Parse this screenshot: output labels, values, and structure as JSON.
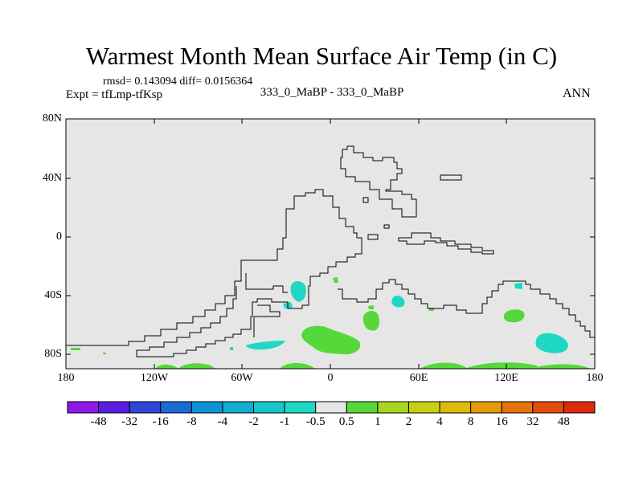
{
  "title": "Warmest Month Mean Surface Air Temp (in C)",
  "stats": "rmsd= 0.143094  diff= 0.0156364",
  "expt": "Expt = tfLmp-tfKsp",
  "center_label": "333_0_MaBP - 333_0_MaBP",
  "season": "ANN",
  "lat_ticks": [
    "80N",
    "40N",
    "0",
    "40S",
    "80S"
  ],
  "lon_ticks": [
    "180",
    "120W",
    "60W",
    "0",
    "60E",
    "120E",
    "180"
  ],
  "colors": {
    "background": "#e6e6e6",
    "positive_anomaly": "#55d839",
    "negative_anomaly": "#1ed8c3",
    "coastline": "#000000"
  },
  "colorbar": {
    "colors": [
      "#8f18e8",
      "#5a1ee0",
      "#3046d8",
      "#1a6ad8",
      "#0c94d8",
      "#11aed0",
      "#17c6c8",
      "#1ed8c3",
      "#e6e6e6",
      "#55d839",
      "#a6d620",
      "#c6d010",
      "#dcbc0a",
      "#e69a0a",
      "#e6720c",
      "#e24c0c",
      "#dc2a0c"
    ],
    "labels": [
      "-48",
      "-32",
      "-16",
      "-8",
      "-4",
      "-2",
      "-1",
      "-0.5",
      "0.5",
      "1",
      "2",
      "4",
      "8",
      "16",
      "32",
      "48"
    ]
  }
}
